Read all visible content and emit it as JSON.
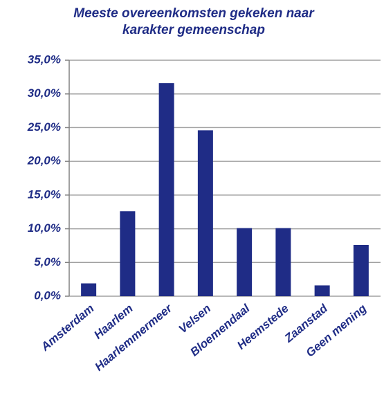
{
  "chart_data": {
    "type": "bar",
    "title": "Meeste overeenkomsten gekeken naar karakter gemeenschap",
    "categories": [
      "Amsterdam",
      "Haarlem",
      "Haarlemmermeer",
      "Velsen",
      "Bloemendaal",
      "Heemstede",
      "Zaanstad",
      "Geen mening"
    ],
    "values": [
      1.9,
      12.6,
      31.6,
      24.6,
      10.1,
      10.1,
      1.6,
      7.6
    ],
    "color": "#1f2c86",
    "ylim": [
      0,
      35
    ],
    "yticks": [
      {
        "value": 0,
        "label": "0,0%"
      },
      {
        "value": 5,
        "label": "5,0%"
      },
      {
        "value": 10,
        "label": "10,0%"
      },
      {
        "value": 15,
        "label": "15,0%"
      },
      {
        "value": 20,
        "label": "20,0%"
      },
      {
        "value": 25,
        "label": "25,0%"
      },
      {
        "value": 30,
        "label": "30,0%"
      },
      {
        "value": 35,
        "label": "35,0%"
      }
    ],
    "grid": true
  }
}
